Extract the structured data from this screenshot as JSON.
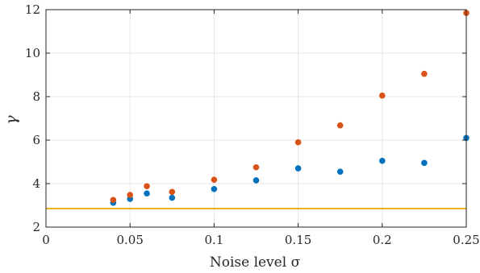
{
  "chart_data": {
    "type": "scatter",
    "title": "",
    "xlabel": "Noise level σ",
    "ylabel": "γ",
    "xlim": [
      0,
      0.25
    ],
    "ylim": [
      2,
      12
    ],
    "grid": true,
    "x_ticks": [
      0,
      0.05,
      0.1,
      0.15,
      0.2,
      0.25
    ],
    "x_tick_labels": [
      "0",
      "0.05",
      "0.1",
      "0.15",
      "0.2",
      "0.25"
    ],
    "y_ticks": [
      2,
      4,
      6,
      8,
      10,
      12
    ],
    "y_tick_labels": [
      "2",
      "4",
      "6",
      "8",
      "10",
      "12"
    ],
    "x": [
      0.04,
      0.05,
      0.06,
      0.075,
      0.1,
      0.125,
      0.15,
      0.175,
      0.2,
      0.225,
      0.25
    ],
    "series": [
      {
        "color": "#0072BD",
        "values": [
          3.12,
          3.3,
          3.55,
          3.35,
          3.75,
          4.15,
          4.7,
          4.55,
          5.05,
          4.95,
          6.1
        ]
      },
      {
        "color": "#D95319",
        "values": [
          3.25,
          3.48,
          3.88,
          3.62,
          4.18,
          4.75,
          5.9,
          6.68,
          8.05,
          9.05,
          11.85
        ]
      }
    ],
    "reference_line": {
      "y": 2.85,
      "color": "#EDB120"
    }
  }
}
